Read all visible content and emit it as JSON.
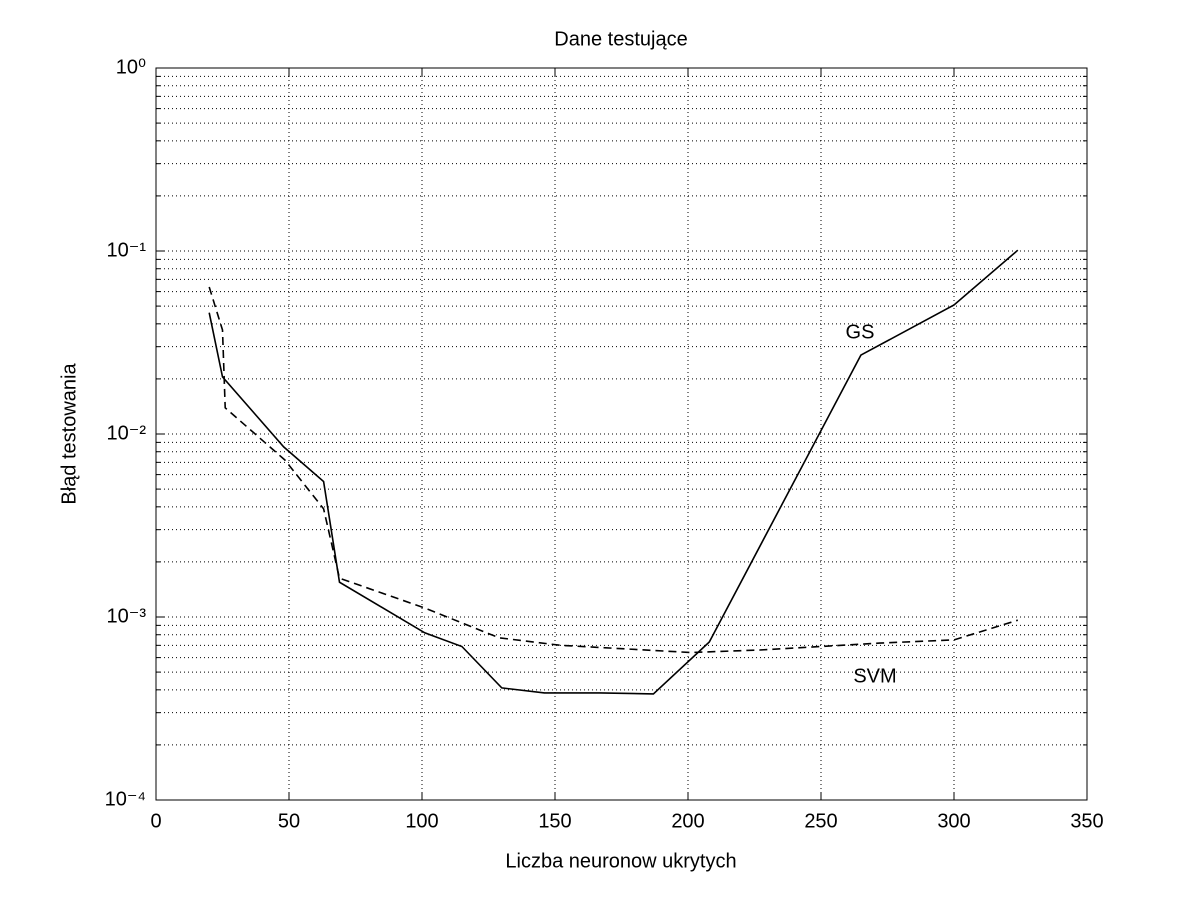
{
  "chart_data": {
    "type": "line",
    "title": "Dane testujące",
    "x_label": "Liczba neuronow ukrytych",
    "y_label": "Błąd testowania",
    "xlim": [
      0,
      350
    ],
    "xticks": [
      0,
      50,
      100,
      150,
      200,
      250,
      300,
      350
    ],
    "ylim": [
      0.0001,
      1
    ],
    "yscale": "log",
    "yticks": [
      {
        "value": 0.0001,
        "label": "10⁻⁴"
      },
      {
        "value": 0.001,
        "label": "10⁻³"
      },
      {
        "value": 0.01,
        "label": "10⁻²"
      },
      {
        "value": 0.1,
        "label": "10⁻¹"
      },
      {
        "value": 1,
        "label": "10⁰"
      }
    ],
    "grid": true,
    "series": [
      {
        "name": "GS",
        "color": "#000000",
        "linestyle": "solid",
        "x": [
          20,
          25,
          48,
          63,
          69,
          101,
          115,
          130,
          146,
          167,
          187,
          208,
          265,
          300,
          324
        ],
        "values": [
          0.046,
          0.0205,
          0.0085,
          0.0055,
          0.00155,
          0.00082,
          0.00069,
          0.00041,
          0.000385,
          0.000385,
          0.00038,
          0.00073,
          0.027,
          0.0507,
          0.101
        ]
      },
      {
        "name": "SVM",
        "color": "#000000",
        "linestyle": "dashed",
        "x": [
          20,
          25,
          26,
          48.5,
          63,
          69,
          101,
          129,
          152,
          201,
          227,
          272,
          300,
          324
        ],
        "values": [
          0.0636,
          0.037,
          0.0139,
          0.0072,
          0.0039,
          0.00163,
          0.00112,
          0.00077,
          0.0007,
          0.00064,
          0.00066,
          0.00072,
          0.00075,
          0.00096
        ]
      }
    ]
  }
}
